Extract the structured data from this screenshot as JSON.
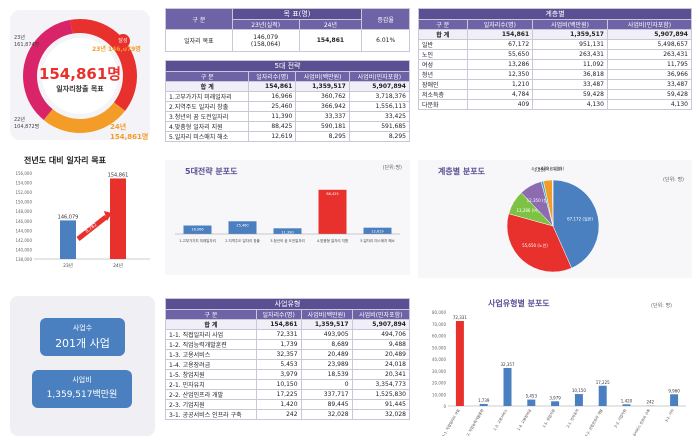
{
  "donut": {
    "value": "154,861명",
    "subtitle": "일자리창출 목표",
    "label_23": "23년 146,079명",
    "label_24": "24년 154,861명",
    "label_23_short": "달성",
    "small_left": "23년\n161,874명",
    "small_left2": "22년\n104,872명"
  },
  "target_table": {
    "header": "목 표(명)",
    "col_group": "구 분",
    "col_23": "23년(실적)",
    "col_24": "24년",
    "col_rate": "증감율",
    "row_label": "일자리 목표",
    "val_23a": "146,079",
    "val_23b": "(158,064)",
    "val_24": "154,861",
    "rate": "6.01%"
  },
  "strategy_table": {
    "title": "5대 전략",
    "cols": [
      "구 분",
      "일자리수(명)",
      "사업비(백만원)",
      "사업비(민자포함)"
    ],
    "total": [
      "합 계",
      "154,861",
      "1,359,517",
      "5,907,894"
    ],
    "rows": [
      [
        "1.고부가가치 미래일자리",
        "16,966",
        "360,762",
        "3,718,376"
      ],
      [
        "2.지역주도 일자리 창출",
        "25,460",
        "366,942",
        "1,556,113"
      ],
      [
        "3.청년의 꿈 도전일자리",
        "11,390",
        "33,337",
        "33,425"
      ],
      [
        "4.맞춤형 일자리 지원",
        "88,425",
        "590,181",
        "591,685"
      ],
      [
        "5.일자리 미스매치 해소",
        "12,619",
        "8,295",
        "8,295"
      ]
    ]
  },
  "group_table": {
    "title": "계층별",
    "cols": [
      "구 분",
      "일자리수(명)",
      "사업비(백만원)",
      "사업비(민자포함)"
    ],
    "total": [
      "합 계",
      "154,861",
      "1,359,517",
      "5,907,894"
    ],
    "rows": [
      [
        "일반",
        "67,172",
        "951,131",
        "5,498,657"
      ],
      [
        "노인",
        "55,650",
        "263,431",
        "263,431"
      ],
      [
        "여성",
        "13,286",
        "11,092",
        "11,795"
      ],
      [
        "청년",
        "12,350",
        "36,818",
        "36,966"
      ],
      [
        "장애인",
        "1,210",
        "33,487",
        "33,487"
      ],
      [
        "저소득층",
        "4,784",
        "59,428",
        "59,428"
      ],
      [
        "다문화",
        "409",
        "4,130",
        "4,130"
      ]
    ]
  },
  "type_table": {
    "title": "사업유형",
    "cols": [
      "구 분",
      "일자리수(명)",
      "사업비(백만원)",
      "사업비(민자포함)"
    ],
    "total": [
      "합 계",
      "154,861",
      "1,359,517",
      "5,907,894"
    ],
    "rows": [
      [
        "1-1. 직접일자리 사업",
        "72,331",
        "493,905",
        "494,706"
      ],
      [
        "1-2. 직업능력개발훈련",
        "1,739",
        "8,689",
        "9,488"
      ],
      [
        "1-3. 고용서비스",
        "32,357",
        "20,489",
        "20,489"
      ],
      [
        "1-4. 고용장려금",
        "5,453",
        "23,989",
        "24,018"
      ],
      [
        "1-5. 창업지원",
        "3,979",
        "18,539",
        "20,341"
      ],
      [
        "2-1. 민자유치",
        "10,150",
        "0",
        "3,354,773"
      ],
      [
        "2-2. 산업인프라 개발",
        "17,225",
        "337,717",
        "1,525,830"
      ],
      [
        "2-3. 기업지원",
        "1,420",
        "89,445",
        "91,445"
      ],
      [
        "3-1. 공공서비스 인프라 구축",
        "242",
        "32,028",
        "32,028"
      ]
    ]
  },
  "business_box": {
    "count_label": "사업수",
    "count_value": "201개 사업",
    "budget_label": "사업비",
    "budget_value": "1,359,517백만원"
  },
  "colors": {
    "purple": "#5b4f93",
    "red": "#e8312c",
    "blue": "#4a7fc0",
    "green": "#7dc242",
    "orange": "#f39c28",
    "pink": "#d9246a"
  },
  "chart_data": [
    {
      "type": "bar",
      "title": "전년도 대비 일자리 목표",
      "categories": [
        "23년",
        "24년"
      ],
      "values": [
        146079,
        154861
      ],
      "ylim": [
        138000,
        156000
      ],
      "yticks": [
        "156,000",
        "154,000",
        "152,000",
        "150,000",
        "148,000",
        "146,000",
        "144,000",
        "142,000",
        "140,000",
        "138,000"
      ],
      "annotation": "8,782",
      "data_labels": [
        "146,079",
        "154,861"
      ]
    },
    {
      "type": "bar",
      "title": "5대전략 분포도",
      "unit": "(단위:명)",
      "categories": [
        "1.고부가가치 미래일자리",
        "2.지역주도 일자리 창출",
        "3.청년의 꿈 도전일자리",
        "4.맞춤형 일자리 지원",
        "5.일자리 미스매치 해소"
      ],
      "values": [
        16966,
        25460,
        11390,
        88425,
        12619
      ],
      "data_labels": [
        "16,966",
        "25,460",
        "11,390",
        "88,425",
        "12,619"
      ],
      "ylim": [
        0,
        100000
      ]
    },
    {
      "type": "pie",
      "title": "계층별 분포도",
      "unit": "(단위: 명)",
      "labels": [
        "일반",
        "노인",
        "여성",
        "청년",
        "장애인",
        "저소득층",
        "다문화"
      ],
      "values": [
        67172,
        55650,
        13286,
        12350,
        1210,
        4784,
        409
      ],
      "data_labels": [
        "67,172\n(일반)",
        "55,650\n(노인)",
        "13,286\n(여성)",
        "12,350\n(청년)",
        "1,210",
        "4,784\n(저소득층)",
        "409 (다문화)"
      ]
    },
    {
      "type": "bar",
      "title": "사업유형별 분포도",
      "unit": "(단위: 명)",
      "categories": [
        "1-1. 직접일자리 사업",
        "1-2. 직업능력개발훈련",
        "1-3. 고용서비스",
        "1-4. 고용장려금",
        "1-5. 창업지원",
        "2-1. 민자유치",
        "2-2. 산업인프라 개발",
        "2-3. 기업지원",
        "3-1. 공공서비스 인프라 구축",
        "3-2. 기타"
      ],
      "values": [
        72331,
        1739,
        32357,
        5453,
        3979,
        10150,
        17225,
        1420,
        242,
        9960
      ],
      "data_labels": [
        "72,331",
        "1,739",
        "32,357",
        "5,453",
        "3,979",
        "10,150",
        "17,225",
        "1,420",
        "242",
        "9,960"
      ],
      "yticks": [
        "80,000",
        "70,000",
        "60,000",
        "50,000",
        "40,000",
        "30,000",
        "20,000",
        "10,000",
        "0"
      ],
      "ylim": [
        0,
        80000
      ]
    }
  ]
}
